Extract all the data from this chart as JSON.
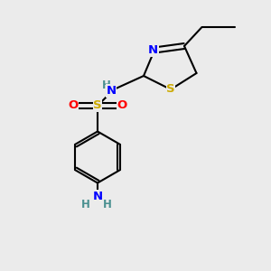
{
  "background_color": "#ebebeb",
  "atom_colors": {
    "C": "#000000",
    "N": "#0000ff",
    "S": "#ccaa00",
    "O": "#ff0000",
    "H": "#4a9090"
  },
  "figsize": [
    3.0,
    3.0
  ],
  "dpi": 100
}
